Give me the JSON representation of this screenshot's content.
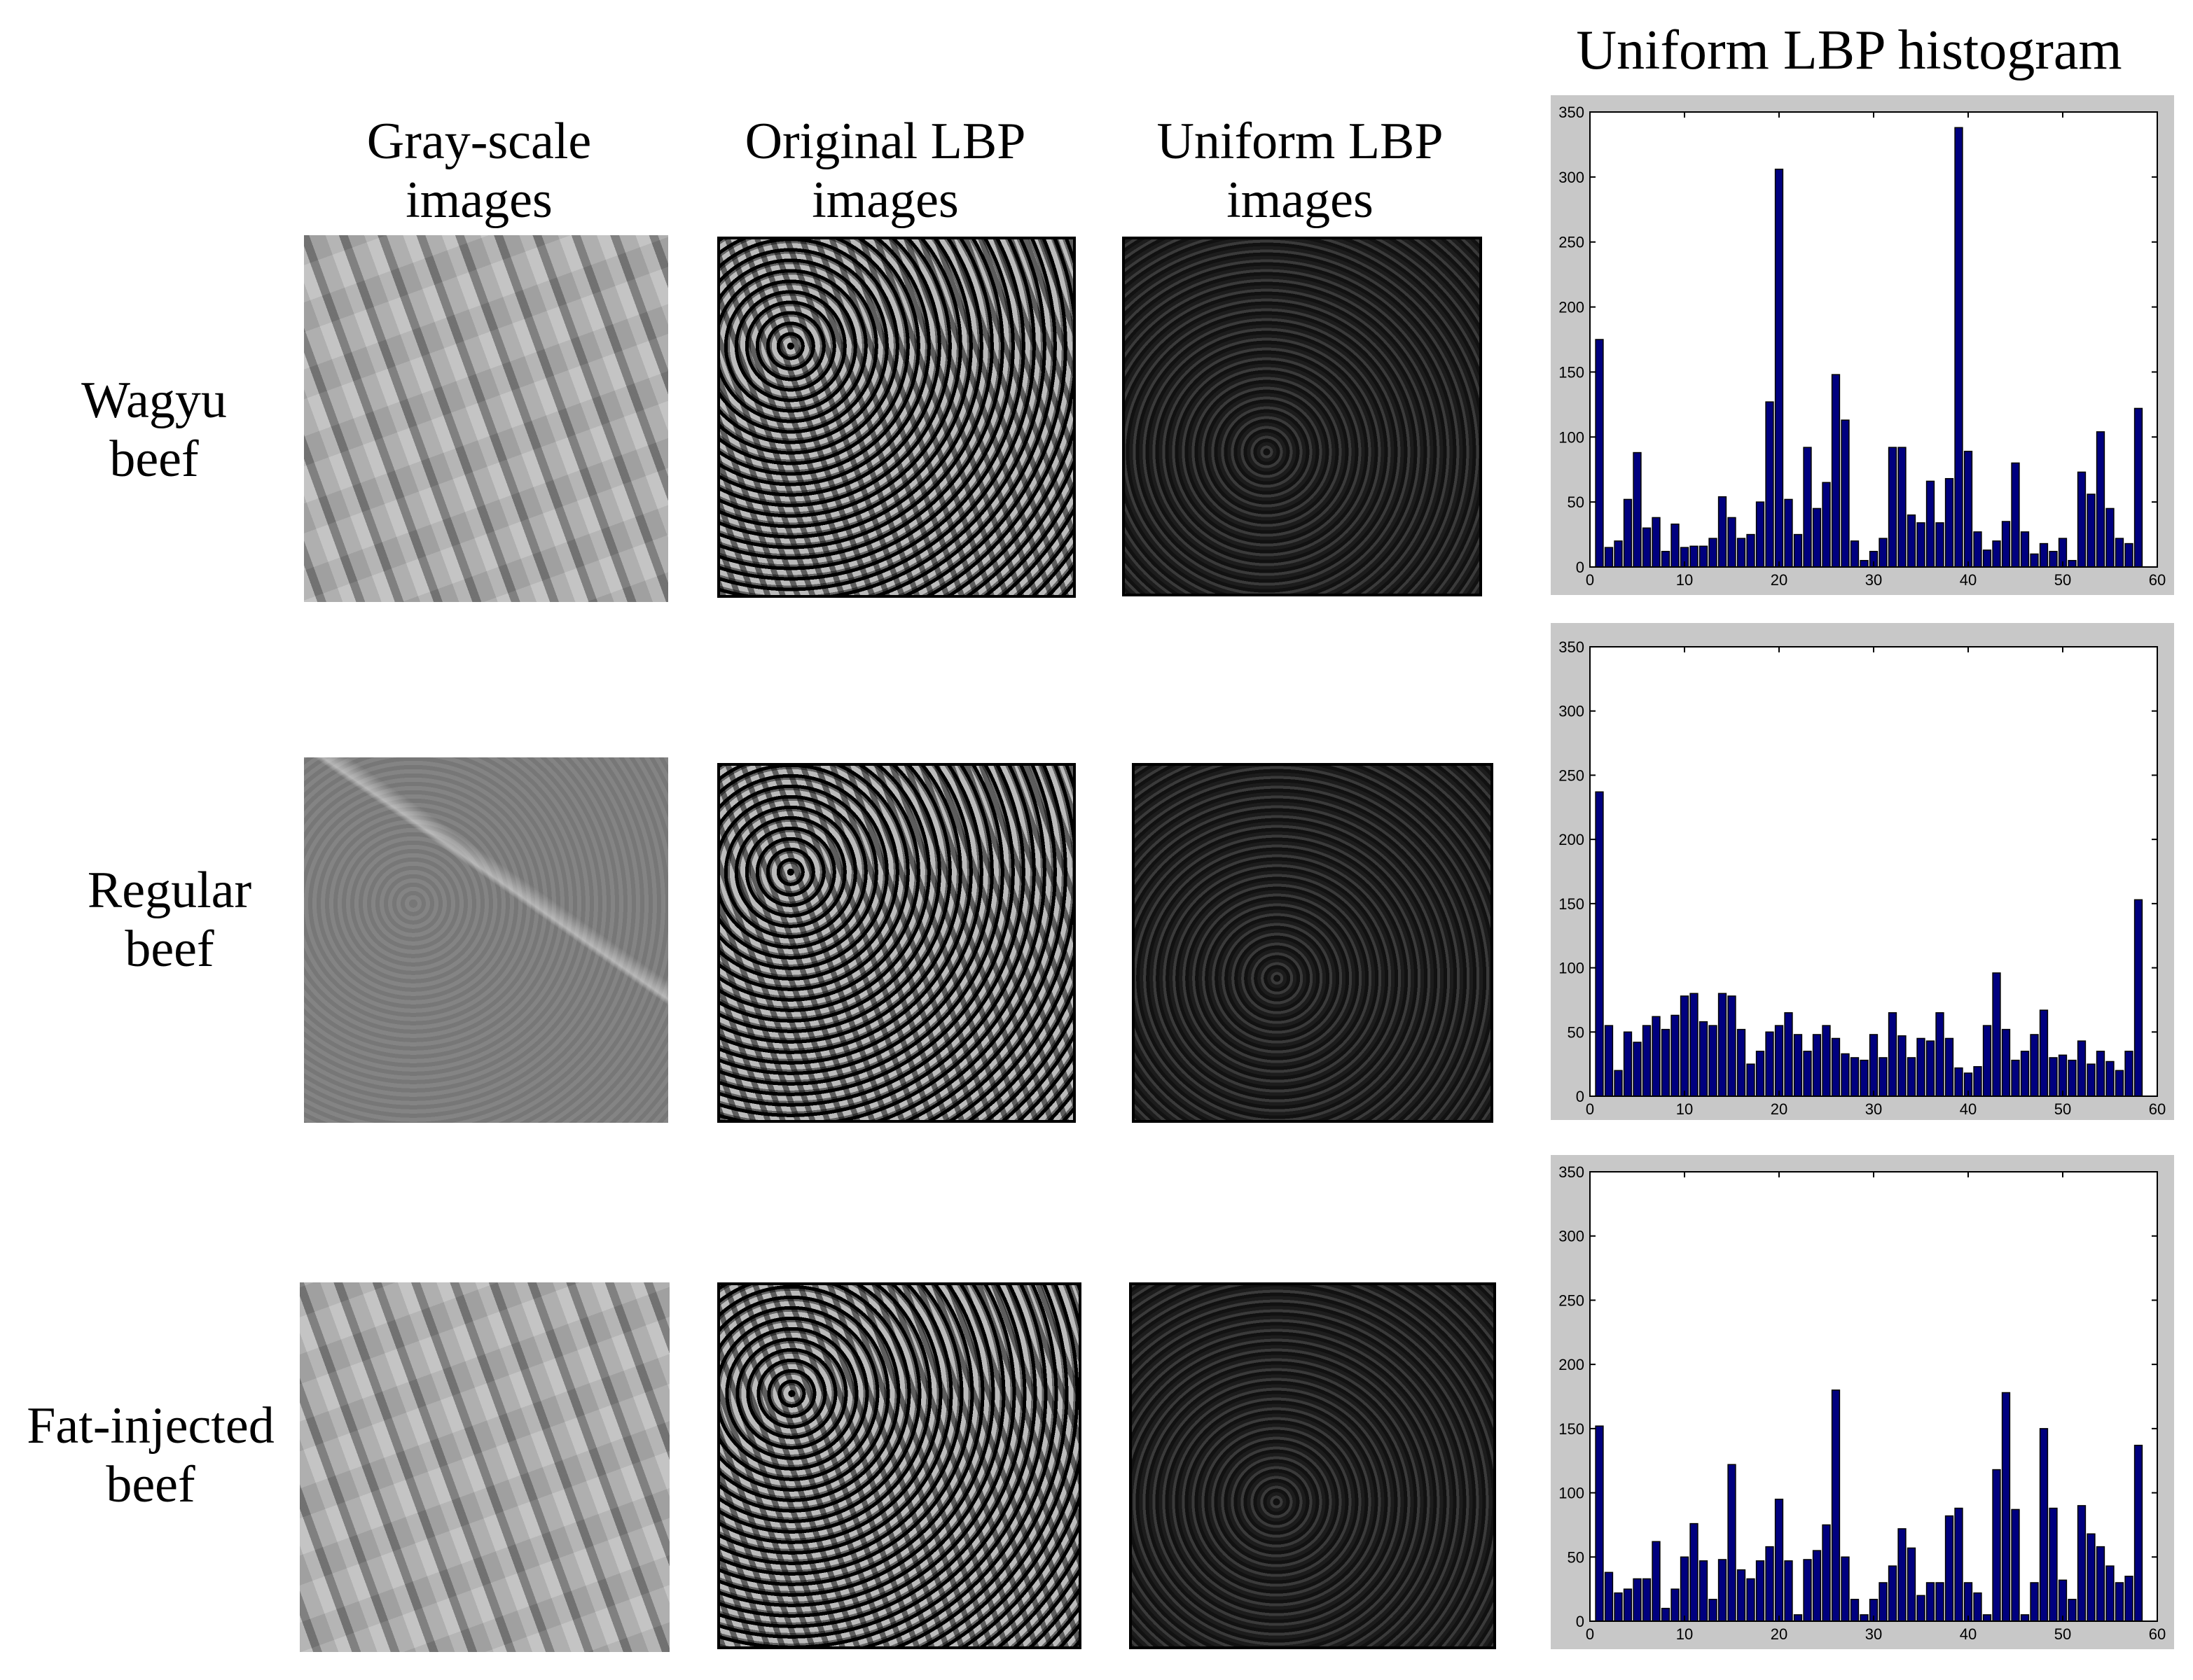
{
  "histogram_title": "Uniform LBP histogram",
  "column_headers": [
    [
      "Gray-scale",
      "images"
    ],
    [
      "Original LBP",
      "images"
    ],
    [
      "Uniform LBP",
      "images"
    ]
  ],
  "row_labels": [
    [
      "Wagyu",
      "beef"
    ],
    [
      "Regular",
      "beef"
    ],
    [
      "Fat-injected",
      "beef"
    ]
  ],
  "chart_data": [
    {
      "type": "bar",
      "color": "#00007f",
      "x": [
        1,
        2,
        3,
        4,
        5,
        6,
        7,
        8,
        9,
        10,
        11,
        12,
        13,
        14,
        15,
        16,
        17,
        18,
        19,
        20,
        21,
        22,
        23,
        24,
        25,
        26,
        27,
        28,
        29,
        30,
        31,
        32,
        33,
        34,
        35,
        36,
        37,
        38,
        39,
        40,
        41,
        42,
        43,
        44,
        45,
        46,
        47,
        48,
        49,
        50,
        51,
        52,
        53,
        54,
        55,
        56,
        57,
        58
      ],
      "values": [
        175,
        15,
        20,
        52,
        88,
        30,
        38,
        12,
        33,
        15,
        16,
        16,
        22,
        54,
        38,
        22,
        25,
        50,
        127,
        306,
        52,
        25,
        92,
        45,
        65,
        148,
        113,
        20,
        5,
        12,
        22,
        92,
        92,
        40,
        34,
        66,
        34,
        68,
        338,
        89,
        27,
        13,
        20,
        35,
        80,
        27,
        10,
        18,
        12,
        22,
        5,
        73,
        56,
        104,
        45,
        22,
        18,
        122
      ],
      "xlim": [
        0,
        60
      ],
      "ylim": [
        0,
        350
      ],
      "xticks": [
        0,
        10,
        20,
        30,
        40,
        50,
        60
      ],
      "yticks": [
        0,
        50,
        100,
        150,
        200,
        250,
        300,
        350
      ]
    },
    {
      "type": "bar",
      "color": "#00007f",
      "x": [
        1,
        2,
        3,
        4,
        5,
        6,
        7,
        8,
        9,
        10,
        11,
        12,
        13,
        14,
        15,
        16,
        17,
        18,
        19,
        20,
        21,
        22,
        23,
        24,
        25,
        26,
        27,
        28,
        29,
        30,
        31,
        32,
        33,
        34,
        35,
        36,
        37,
        38,
        39,
        40,
        41,
        42,
        43,
        44,
        45,
        46,
        47,
        48,
        49,
        50,
        51,
        52,
        53,
        54,
        55,
        56,
        57,
        58
      ],
      "values": [
        237,
        55,
        20,
        50,
        42,
        55,
        62,
        52,
        63,
        78,
        80,
        58,
        55,
        80,
        78,
        52,
        25,
        35,
        50,
        55,
        65,
        48,
        35,
        48,
        55,
        45,
        33,
        30,
        28,
        48,
        30,
        65,
        47,
        30,
        45,
        43,
        65,
        45,
        22,
        18,
        23,
        55,
        96,
        52,
        28,
        35,
        48,
        67,
        30,
        32,
        28,
        43,
        25,
        35,
        27,
        20,
        35,
        153
      ],
      "xlim": [
        0,
        60
      ],
      "ylim": [
        0,
        350
      ],
      "xticks": [
        0,
        10,
        20,
        30,
        40,
        50,
        60
      ],
      "yticks": [
        0,
        50,
        100,
        150,
        200,
        250,
        300,
        350
      ]
    },
    {
      "type": "bar",
      "color": "#00007f",
      "x": [
        1,
        2,
        3,
        4,
        5,
        6,
        7,
        8,
        9,
        10,
        11,
        12,
        13,
        14,
        15,
        16,
        17,
        18,
        19,
        20,
        21,
        22,
        23,
        24,
        25,
        26,
        27,
        28,
        29,
        30,
        31,
        32,
        33,
        34,
        35,
        36,
        37,
        38,
        39,
        40,
        41,
        42,
        43,
        44,
        45,
        46,
        47,
        48,
        49,
        50,
        51,
        52,
        53,
        54,
        55,
        56,
        57,
        58
      ],
      "values": [
        152,
        38,
        22,
        25,
        33,
        33,
        62,
        10,
        25,
        50,
        76,
        47,
        17,
        48,
        122,
        40,
        33,
        47,
        58,
        95,
        47,
        5,
        48,
        55,
        75,
        180,
        50,
        17,
        5,
        17,
        30,
        43,
        72,
        57,
        20,
        30,
        30,
        82,
        88,
        30,
        22,
        5,
        118,
        178,
        87,
        5,
        30,
        150,
        88,
        32,
        17,
        90,
        68,
        58,
        43,
        30,
        35,
        137
      ],
      "xlim": [
        0,
        60
      ],
      "ylim": [
        0,
        350
      ],
      "xticks": [
        0,
        10,
        20,
        30,
        40,
        50,
        60
      ],
      "yticks": [
        0,
        50,
        100,
        150,
        200,
        250,
        300,
        350
      ]
    }
  ]
}
